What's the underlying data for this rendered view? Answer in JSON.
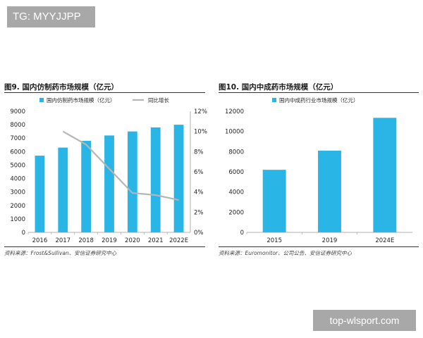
{
  "watermark_top": "TG: MYYJJPP",
  "watermark_bottom": "top-wlsport.com",
  "colors": {
    "bar": "#29b6e6",
    "line": "#b5b5b5",
    "text": "#222222",
    "axis": "#999999"
  },
  "chart_data": [
    {
      "type": "bar",
      "title": "图9. 国内仿制药市场规模（亿元）",
      "categories": [
        "2016",
        "2017",
        "2018",
        "2019",
        "2020",
        "2021",
        "2022E"
      ],
      "series": [
        {
          "name": "国内仿制药市场规模（亿元）",
          "type": "bar",
          "axis": "left",
          "values": [
            5700,
            6300,
            6800,
            7200,
            7500,
            7800,
            8000
          ]
        },
        {
          "name": "同比增长",
          "type": "line",
          "axis": "right",
          "values": [
            null,
            0.1,
            0.087,
            0.063,
            0.039,
            0.037,
            0.032
          ]
        }
      ],
      "ylim": [
        0,
        9000
      ],
      "yticks": [
        "0",
        "1000",
        "2000",
        "3000",
        "4000",
        "5000",
        "6000",
        "7000",
        "8000",
        "9000"
      ],
      "y2lim": [
        0,
        0.12
      ],
      "y2ticks": [
        "0%",
        "2%",
        "4%",
        "6%",
        "8%",
        "10%",
        "12%"
      ],
      "legend": "top",
      "source": "资料来源：Frost&Sullivan、安信证券研究中心"
    },
    {
      "type": "bar",
      "title": "图10. 国内中成药市场规模（亿元）",
      "categories": [
        "2015",
        "2019",
        "2024E"
      ],
      "series": [
        {
          "name": "国内中成药行业市场规模（亿元）",
          "type": "bar",
          "axis": "left",
          "values": [
            6200,
            8100,
            11350
          ]
        }
      ],
      "ylim": [
        0,
        12000
      ],
      "yticks": [
        "0",
        "2000",
        "4000",
        "6000",
        "8000",
        "10000",
        "12000"
      ],
      "legend": "top",
      "source": "资料来源：Euromonitor、公司公告、安信证券研究中心"
    }
  ]
}
